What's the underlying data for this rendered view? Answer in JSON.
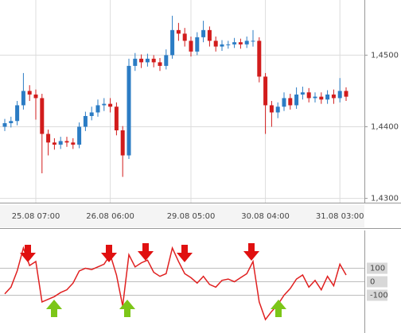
{
  "chart_data": [
    {
      "type": "candlestick",
      "categories": [
        null,
        null,
        null,
        null,
        null,
        "25.08 07:00",
        null,
        null,
        null,
        null,
        null,
        null,
        null,
        null,
        null,
        null,
        null,
        "26.08 06:00",
        null,
        null,
        null,
        null,
        null,
        null,
        null,
        null,
        null,
        null,
        null,
        null,
        "29.08 05:00",
        null,
        null,
        null,
        null,
        null,
        null,
        null,
        null,
        null,
        null,
        null,
        "30.08 04:00",
        null,
        null,
        null,
        null,
        null,
        null,
        null,
        null,
        null,
        null,
        null,
        "31.08 03:00",
        null
      ],
      "open": [
        1.44,
        1.4405,
        1.4408,
        1.443,
        1.445,
        1.4445,
        1.444,
        1.439,
        1.4378,
        1.4375,
        1.438,
        1.4378,
        1.4375,
        1.44,
        1.4415,
        1.442,
        1.443,
        1.4432,
        1.4428,
        1.4395,
        1.436,
        1.4485,
        1.4495,
        1.449,
        1.4495,
        1.449,
        1.4485,
        1.45,
        1.4535,
        1.453,
        1.452,
        1.4505,
        1.4525,
        1.4535,
        1.452,
        1.4512,
        1.4515,
        1.4515,
        1.4518,
        1.4515,
        1.452,
        1.452,
        1.447,
        1.443,
        1.442,
        1.4428,
        1.444,
        1.443,
        1.4445,
        1.4448,
        1.444,
        1.4442,
        1.4438,
        1.4445,
        1.444,
        1.445
      ],
      "high": [
        1.4411,
        1.4414,
        1.4436,
        1.4475,
        1.4458,
        1.4452,
        1.4446,
        1.4396,
        1.4384,
        1.4386,
        1.4386,
        1.4384,
        1.4406,
        1.4421,
        1.4428,
        1.4438,
        1.444,
        1.444,
        1.4434,
        1.4401,
        1.4495,
        1.4503,
        1.4501,
        1.4502,
        1.45,
        1.4496,
        1.4508,
        1.4555,
        1.4545,
        1.4538,
        1.4526,
        1.4532,
        1.4548,
        1.454,
        1.4526,
        1.4521,
        1.452,
        1.4524,
        1.4523,
        1.4526,
        1.4535,
        1.4525,
        1.4475,
        1.4436,
        1.4434,
        1.4448,
        1.4446,
        1.4455,
        1.4456,
        1.4454,
        1.4448,
        1.4448,
        1.4451,
        1.4452,
        1.4468,
        1.4455
      ],
      "low": [
        1.4394,
        1.4399,
        1.4402,
        1.4424,
        1.4436,
        1.441,
        1.4335,
        1.436,
        1.4368,
        1.4369,
        1.4372,
        1.4369,
        1.437,
        1.4394,
        1.4409,
        1.4414,
        1.4422,
        1.442,
        1.4388,
        1.433,
        1.4355,
        1.4478,
        1.4482,
        1.4484,
        1.4483,
        1.4478,
        1.448,
        1.4495,
        1.452,
        1.4512,
        1.4498,
        1.45,
        1.4518,
        1.4512,
        1.4505,
        1.4506,
        1.4509,
        1.451,
        1.4509,
        1.451,
        1.4512,
        1.4462,
        1.439,
        1.44,
        1.4412,
        1.4422,
        1.4424,
        1.4425,
        1.4438,
        1.4434,
        1.4434,
        1.4432,
        1.4432,
        1.4432,
        1.4434,
        1.4436
      ],
      "close": [
        1.4405,
        1.4408,
        1.443,
        1.445,
        1.4445,
        1.444,
        1.439,
        1.4378,
        1.4375,
        1.438,
        1.4378,
        1.4375,
        1.44,
        1.4415,
        1.442,
        1.443,
        1.4432,
        1.4428,
        1.4395,
        1.436,
        1.4485,
        1.4495,
        1.449,
        1.4495,
        1.449,
        1.4485,
        1.45,
        1.4535,
        1.453,
        1.452,
        1.4505,
        1.4525,
        1.4535,
        1.452,
        1.4512,
        1.4515,
        1.4515,
        1.4518,
        1.4515,
        1.452,
        1.452,
        1.447,
        1.443,
        1.442,
        1.4428,
        1.444,
        1.443,
        1.4445,
        1.4448,
        1.444,
        1.4442,
        1.4438,
        1.4445,
        1.444,
        1.445,
        1.4442
      ],
      "up_color": "#2b7cc4",
      "down_color": "#d21c1c",
      "ylim": [
        1.4294,
        1.4577
      ],
      "yticks": [
        {
          "value": 1.43,
          "label": "1,4300"
        },
        {
          "value": 1.44,
          "label": "1,4400"
        },
        {
          "value": 1.45,
          "label": "1,4500"
        }
      ],
      "grid": true
    },
    {
      "type": "line",
      "values": [
        -90,
        -40,
        80,
        250,
        120,
        150,
        -150,
        -130,
        -110,
        -80,
        -60,
        -10,
        80,
        100,
        90,
        110,
        130,
        200,
        50,
        -180,
        200,
        110,
        140,
        160,
        70,
        40,
        60,
        250,
        150,
        60,
        30,
        -10,
        40,
        -20,
        -40,
        10,
        20,
        0,
        30,
        60,
        150,
        -150,
        -280,
        -220,
        -170,
        -100,
        -50,
        20,
        50,
        -40,
        10,
        -60,
        40,
        -30,
        130,
        50
      ],
      "color": "#e02020",
      "ylim": [
        -380,
        380
      ],
      "yticks": [
        -100,
        0,
        100
      ],
      "grid": true
    }
  ]
}
